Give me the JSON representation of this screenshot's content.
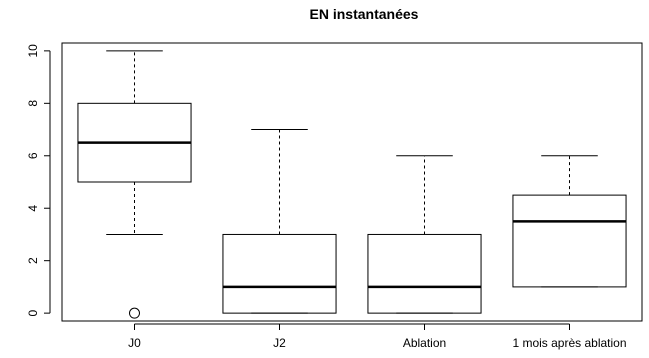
{
  "chart_data": {
    "type": "boxplot",
    "title": "EN instantanées",
    "xlabel": "",
    "ylabel": "",
    "ylim": [
      -0.3,
      10.3
    ],
    "yticks": [
      0,
      2,
      4,
      6,
      8,
      10
    ],
    "grid": false,
    "categories": [
      "J0",
      "J2",
      "Ablation",
      "1 mois après ablation"
    ],
    "boxes": [
      {
        "category": "J0",
        "min": 3,
        "q1": 5,
        "median": 6.5,
        "q3": 8,
        "max": 10,
        "outliers": [
          0
        ]
      },
      {
        "category": "J2",
        "min": 0,
        "q1": 0,
        "median": 1,
        "q3": 3,
        "max": 7,
        "outliers": []
      },
      {
        "category": "Ablation",
        "min": 0,
        "q1": 0,
        "median": 1,
        "q3": 3,
        "max": 6,
        "outliers": []
      },
      {
        "category": "1 mois après ablation",
        "min": 1,
        "q1": 1,
        "median": 3.5,
        "q3": 4.5,
        "max": 6,
        "outliers": []
      }
    ]
  }
}
